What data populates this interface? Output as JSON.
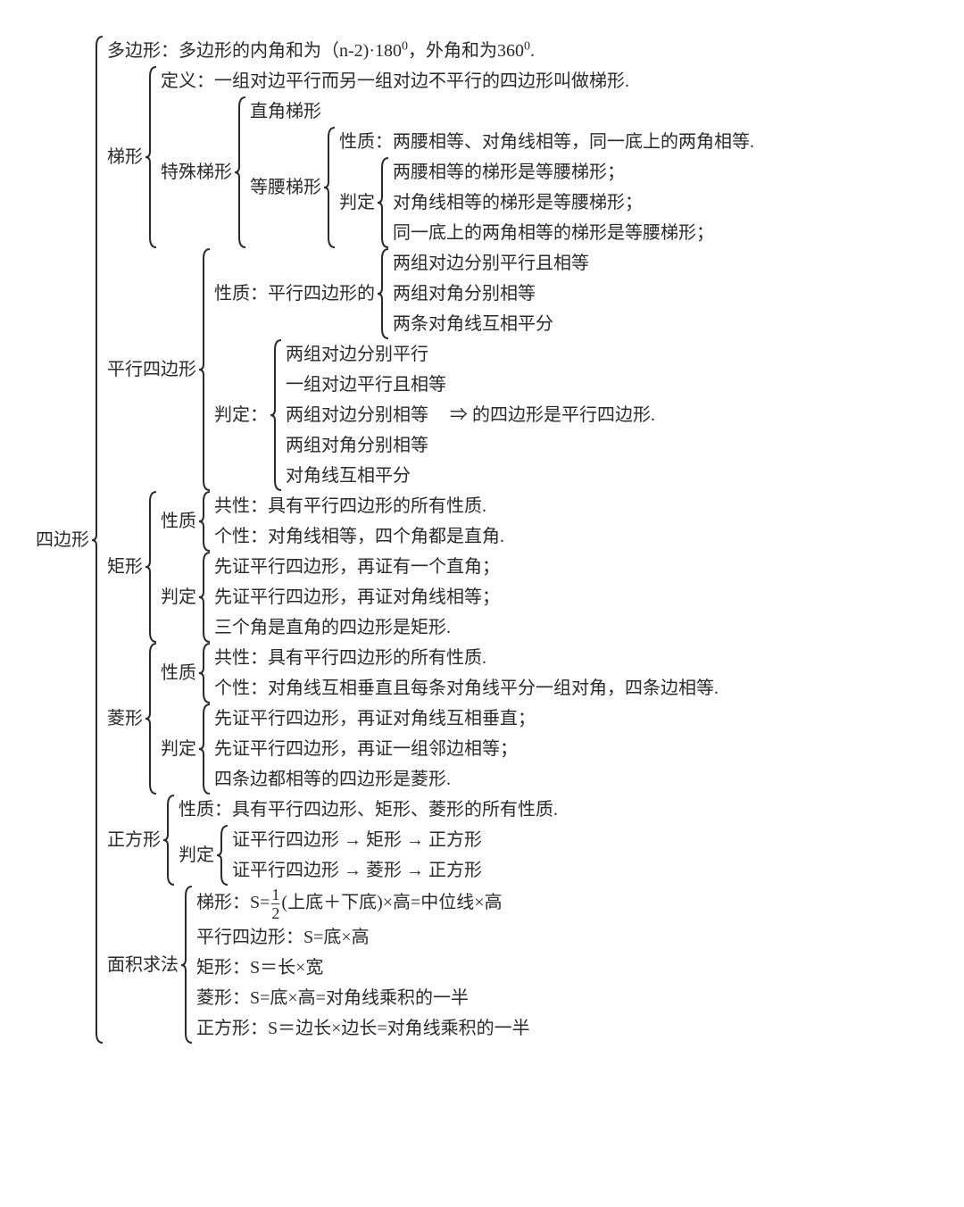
{
  "style": {
    "background_color": "#ffffff",
    "text_color": "#2a2a2a",
    "font_family": "SimSun",
    "font_size_pt": 15,
    "brace_color": "#2a2a2a",
    "brace_stroke_width": 2
  },
  "root": "四边形",
  "polygon": "多边形：多边形的内角和为（n-2)·180⁰，外角和为360⁰.",
  "trapezoid": {
    "label": "梯形",
    "definition": "定义：一组对边平行而另一组对边不平行的四边形叫做梯形.",
    "special_label": "特殊梯形",
    "right": "直角梯形",
    "isosceles_label": "等腰梯形",
    "isosceles_property": "性质：两腰相等、对角线相等，同一底上的两角相等.",
    "isosceles_determine_label": "判定",
    "isosceles_determine": [
      "两腰相等的梯形是等腰梯形；",
      "对角线相等的梯形是等腰梯形；",
      "同一底上的两角相等的梯形是等腰梯形；"
    ]
  },
  "parallelogram": {
    "label": "平行四边形",
    "property_prefix": "性质：平行四边形的",
    "properties": [
      "两组对边分别平行且相等",
      "两组对角分别相等",
      "两条对角线互相平分"
    ],
    "determine_prefix": "判定：",
    "determines": [
      "两组对边分别平行",
      "一组对边平行且相等",
      "两组对边分别相等",
      "两组对角分别相等",
      "对角线互相平分"
    ],
    "determine_suffix": "⇒ 的四边形是平行四边形."
  },
  "rectangle": {
    "label": "矩形",
    "property_label": "性质",
    "properties": [
      "共性：具有平行四边形的所有性质.",
      "个性：对角线相等，四个角都是直角."
    ],
    "determine_label": "判定",
    "determines": [
      "先证平行四边形，再证有一个直角；",
      "先证平行四边形，再证对角线相等；",
      "三个角是直角的四边形是矩形."
    ]
  },
  "rhombus": {
    "label": "菱形",
    "property_label": "性质",
    "properties": [
      "共性：具有平行四边形的所有性质.",
      "个性：对角线互相垂直且每条对角线平分一组对角，四条边相等."
    ],
    "determine_label": "判定",
    "determines": [
      "先证平行四边形，再证对角线互相垂直；",
      "先证平行四边形，再证一组邻边相等；",
      "四条边都相等的四边形是菱形."
    ]
  },
  "square": {
    "label": "正方形",
    "property": "性质：具有平行四边形、矩形、菱形的所有性质.",
    "determine_label": "判定",
    "determines": [
      "证平行四边形 → 矩形 → 正方形",
      "证平行四边形 → 菱形 → 正方形"
    ]
  },
  "area": {
    "label": "面积求法",
    "trapezoid_prefix": "梯形：S=",
    "trapezoid_suffix": "(上底＋下底)×高=中位线×高",
    "parallelogram": "平行四边形：S=底×高",
    "rectangle": "矩形：S＝长×宽",
    "rhombus": "菱形：S=底×高=对角线乘积的一半",
    "square": "正方形：S＝边长×边长=对角线乘积的一半"
  }
}
